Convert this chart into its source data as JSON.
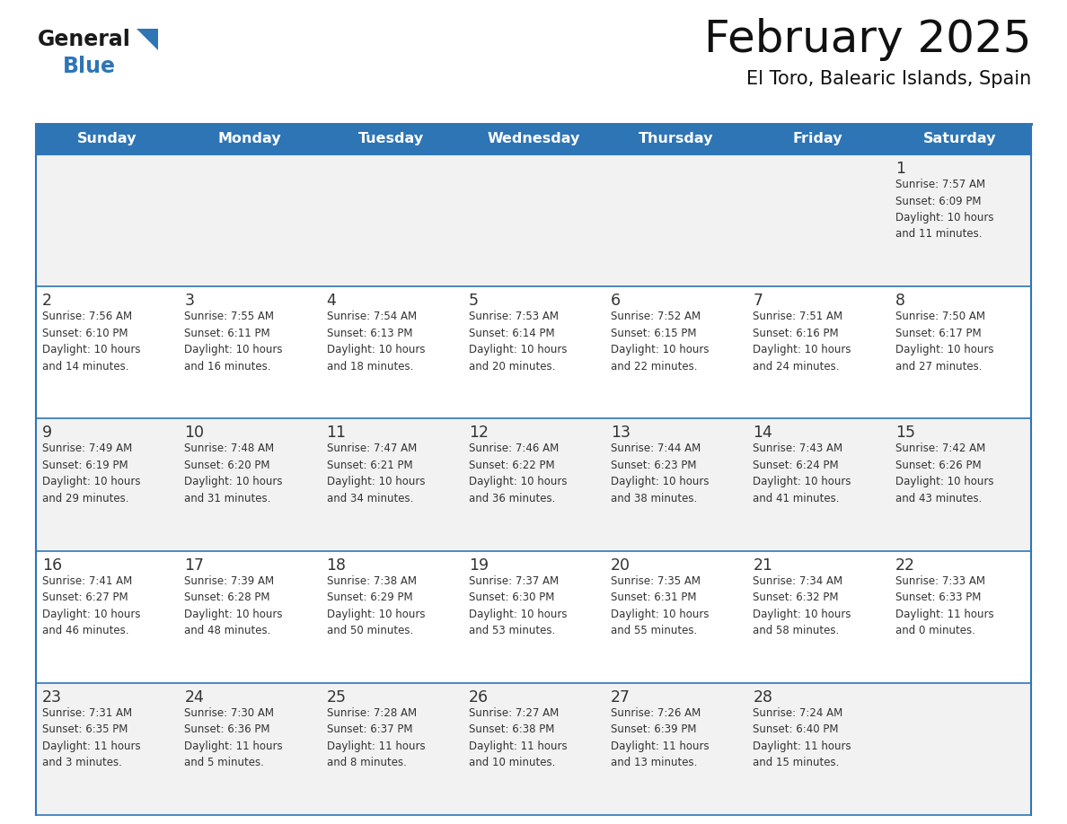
{
  "title": "February 2025",
  "subtitle": "El Toro, Balearic Islands, Spain",
  "header_bg": "#2E75B6",
  "header_text_color": "#FFFFFF",
  "row_bg_odd": "#F2F2F2",
  "row_bg_even": "#FFFFFF",
  "border_color": "#2E75B6",
  "day_number_color": "#333333",
  "cell_text_color": "#333333",
  "days_of_week": [
    "Sunday",
    "Monday",
    "Tuesday",
    "Wednesday",
    "Thursday",
    "Friday",
    "Saturday"
  ],
  "logo_general_color": "#1a1a1a",
  "logo_blue_color": "#2E75B6",
  "weeks": [
    [
      {
        "day": null,
        "data": null
      },
      {
        "day": null,
        "data": null
      },
      {
        "day": null,
        "data": null
      },
      {
        "day": null,
        "data": null
      },
      {
        "day": null,
        "data": null
      },
      {
        "day": null,
        "data": null
      },
      {
        "day": 1,
        "data": "Sunrise: 7:57 AM\nSunset: 6:09 PM\nDaylight: 10 hours\nand 11 minutes."
      }
    ],
    [
      {
        "day": 2,
        "data": "Sunrise: 7:56 AM\nSunset: 6:10 PM\nDaylight: 10 hours\nand 14 minutes."
      },
      {
        "day": 3,
        "data": "Sunrise: 7:55 AM\nSunset: 6:11 PM\nDaylight: 10 hours\nand 16 minutes."
      },
      {
        "day": 4,
        "data": "Sunrise: 7:54 AM\nSunset: 6:13 PM\nDaylight: 10 hours\nand 18 minutes."
      },
      {
        "day": 5,
        "data": "Sunrise: 7:53 AM\nSunset: 6:14 PM\nDaylight: 10 hours\nand 20 minutes."
      },
      {
        "day": 6,
        "data": "Sunrise: 7:52 AM\nSunset: 6:15 PM\nDaylight: 10 hours\nand 22 minutes."
      },
      {
        "day": 7,
        "data": "Sunrise: 7:51 AM\nSunset: 6:16 PM\nDaylight: 10 hours\nand 24 minutes."
      },
      {
        "day": 8,
        "data": "Sunrise: 7:50 AM\nSunset: 6:17 PM\nDaylight: 10 hours\nand 27 minutes."
      }
    ],
    [
      {
        "day": 9,
        "data": "Sunrise: 7:49 AM\nSunset: 6:19 PM\nDaylight: 10 hours\nand 29 minutes."
      },
      {
        "day": 10,
        "data": "Sunrise: 7:48 AM\nSunset: 6:20 PM\nDaylight: 10 hours\nand 31 minutes."
      },
      {
        "day": 11,
        "data": "Sunrise: 7:47 AM\nSunset: 6:21 PM\nDaylight: 10 hours\nand 34 minutes."
      },
      {
        "day": 12,
        "data": "Sunrise: 7:46 AM\nSunset: 6:22 PM\nDaylight: 10 hours\nand 36 minutes."
      },
      {
        "day": 13,
        "data": "Sunrise: 7:44 AM\nSunset: 6:23 PM\nDaylight: 10 hours\nand 38 minutes."
      },
      {
        "day": 14,
        "data": "Sunrise: 7:43 AM\nSunset: 6:24 PM\nDaylight: 10 hours\nand 41 minutes."
      },
      {
        "day": 15,
        "data": "Sunrise: 7:42 AM\nSunset: 6:26 PM\nDaylight: 10 hours\nand 43 minutes."
      }
    ],
    [
      {
        "day": 16,
        "data": "Sunrise: 7:41 AM\nSunset: 6:27 PM\nDaylight: 10 hours\nand 46 minutes."
      },
      {
        "day": 17,
        "data": "Sunrise: 7:39 AM\nSunset: 6:28 PM\nDaylight: 10 hours\nand 48 minutes."
      },
      {
        "day": 18,
        "data": "Sunrise: 7:38 AM\nSunset: 6:29 PM\nDaylight: 10 hours\nand 50 minutes."
      },
      {
        "day": 19,
        "data": "Sunrise: 7:37 AM\nSunset: 6:30 PM\nDaylight: 10 hours\nand 53 minutes."
      },
      {
        "day": 20,
        "data": "Sunrise: 7:35 AM\nSunset: 6:31 PM\nDaylight: 10 hours\nand 55 minutes."
      },
      {
        "day": 21,
        "data": "Sunrise: 7:34 AM\nSunset: 6:32 PM\nDaylight: 10 hours\nand 58 minutes."
      },
      {
        "day": 22,
        "data": "Sunrise: 7:33 AM\nSunset: 6:33 PM\nDaylight: 11 hours\nand 0 minutes."
      }
    ],
    [
      {
        "day": 23,
        "data": "Sunrise: 7:31 AM\nSunset: 6:35 PM\nDaylight: 11 hours\nand 3 minutes."
      },
      {
        "day": 24,
        "data": "Sunrise: 7:30 AM\nSunset: 6:36 PM\nDaylight: 11 hours\nand 5 minutes."
      },
      {
        "day": 25,
        "data": "Sunrise: 7:28 AM\nSunset: 6:37 PM\nDaylight: 11 hours\nand 8 minutes."
      },
      {
        "day": 26,
        "data": "Sunrise: 7:27 AM\nSunset: 6:38 PM\nDaylight: 11 hours\nand 10 minutes."
      },
      {
        "day": 27,
        "data": "Sunrise: 7:26 AM\nSunset: 6:39 PM\nDaylight: 11 hours\nand 13 minutes."
      },
      {
        "day": 28,
        "data": "Sunrise: 7:24 AM\nSunset: 6:40 PM\nDaylight: 11 hours\nand 15 minutes."
      },
      {
        "day": null,
        "data": null
      }
    ]
  ],
  "fig_width": 11.88,
  "fig_height": 9.18,
  "dpi": 100
}
